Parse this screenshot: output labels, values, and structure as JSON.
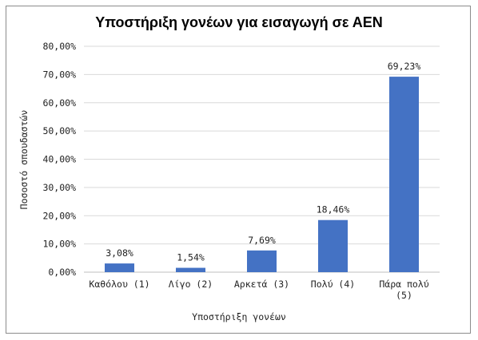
{
  "chart_data": {
    "type": "bar",
    "title": "Υποστήριξη γονέων για εισαγωγή σε ΑΕΝ",
    "xlabel": "Υποστήριξη γονέων",
    "ylabel": "Ποσοστό σπουδαστών",
    "categories": [
      "Καθόλου (1)",
      "Λίγο (2)",
      "Αρκετά (3)",
      "Πολύ (4)",
      "Πάρα πολύ (5)"
    ],
    "category_lines": [
      [
        "Καθόλου (1)"
      ],
      [
        "Λίγο (2)"
      ],
      [
        "Αρκετά (3)"
      ],
      [
        "Πολύ (4)"
      ],
      [
        "Πάρα πολύ",
        "(5)"
      ]
    ],
    "values": [
      3.08,
      1.54,
      7.69,
      18.46,
      69.23
    ],
    "value_labels": [
      "3,08%",
      "1,54%",
      "7,69%",
      "18,46%",
      "69,23%"
    ],
    "ylim": [
      0,
      80
    ],
    "yticks": [
      0,
      10,
      20,
      30,
      40,
      50,
      60,
      70,
      80
    ],
    "ytick_labels": [
      "0,00%",
      "10,00%",
      "20,00%",
      "30,00%",
      "40,00%",
      "50,00%",
      "60,00%",
      "70,00%",
      "80,00%"
    ],
    "grid": true,
    "legend": "none",
    "bar_color": "#4472c4",
    "grid_color": "#d9d9d9"
  }
}
